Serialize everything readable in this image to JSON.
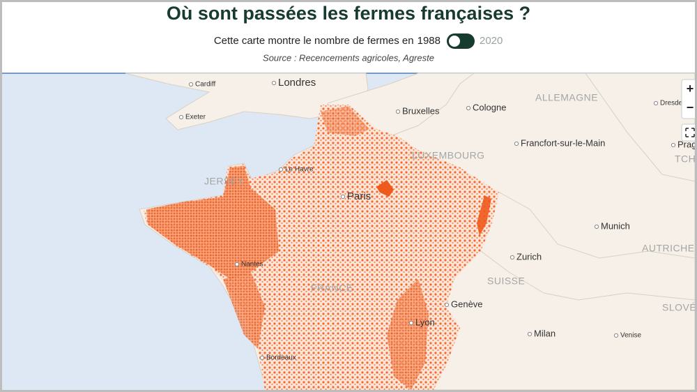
{
  "header": {
    "title": "Où sont passées les fermes françaises ?",
    "toggle_label": "Cette carte montre le nombre de fermes en",
    "year_left": "1988",
    "year_right": "2020",
    "source": "Source : Recencements agricoles, Agreste"
  },
  "map": {
    "cities": [
      "Cardiff",
      "Londres",
      "Exeter",
      "Bruxelles",
      "Cologne",
      "Dresde",
      "Le Havre",
      "Paris",
      "Francfort-sur-le-Main",
      "Prag",
      "Munich",
      "Zurich",
      "Nantes",
      "Genève",
      "Lyon",
      "Milan",
      "Venise",
      "Bordeaux"
    ],
    "countries": [
      "ALLEMAGNE",
      "LUXEMBOURG",
      "TCH",
      "AUTRICHE",
      "SUISSE",
      "SLOVÉ",
      "JERSEY",
      "FRANCE"
    ],
    "controls": {
      "zoom_in": "+",
      "zoom_out": "−"
    }
  }
}
